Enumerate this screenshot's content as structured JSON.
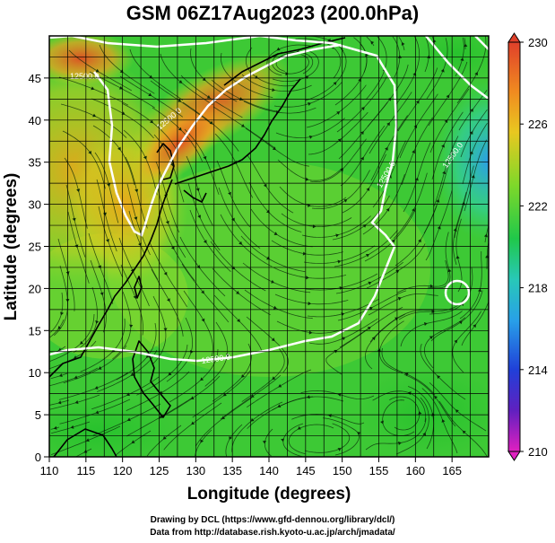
{
  "title": "GSM 06Z17Aug2023 (200.0hPa)",
  "xlabel": "Longitude (degrees)",
  "ylabel": "Latitude  (degrees)",
  "credit_line1": "Drawing by DCL (https://www.gfd-dennou.org/library/dcl/)",
  "credit_line2": "Data from http://database.rish.kyoto-u.ac.jp/arch/jmadata/",
  "x_ticks": [
    "110",
    "115",
    "120",
    "125",
    "130",
    "135",
    "140",
    "145",
    "150",
    "155",
    "160",
    "165"
  ],
  "y_ticks": [
    "0",
    "5",
    "10",
    "15",
    "20",
    "25",
    "30",
    "35",
    "40",
    "45"
  ],
  "colorbar": {
    "ticks": [
      "230",
      "226",
      "222",
      "218",
      "214",
      "210"
    ],
    "min": 210,
    "max": 230,
    "unit": ""
  },
  "contour_labels": [
    "12500.0",
    "12500.0",
    "12500.0",
    "12500.0",
    "12500.0"
  ],
  "map": {
    "projection": "equirectangular",
    "lon_range": [
      110,
      170
    ],
    "lat_range": [
      0,
      50
    ],
    "field": "temperature (color) with wind streamlines and geopotential height contours"
  },
  "colors": {
    "warm_max": "#e0402a",
    "mid": "#2fc72f",
    "cool": "#2aa0e8",
    "contour": "#ffffff",
    "coast": "#000000"
  }
}
